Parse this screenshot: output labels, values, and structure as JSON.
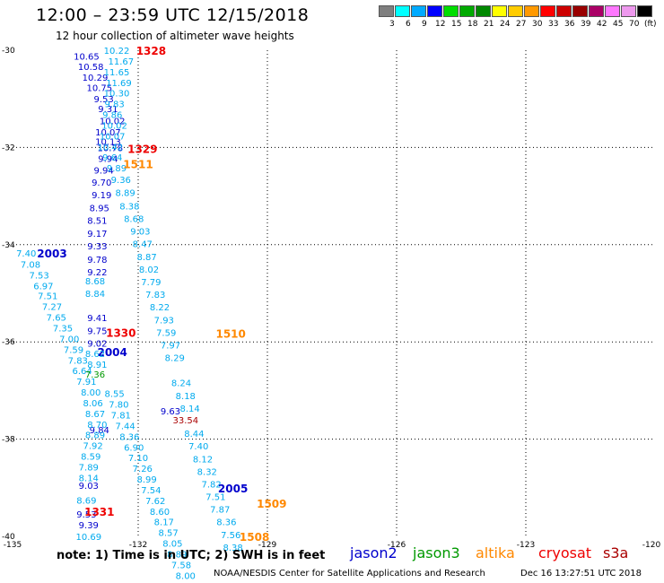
{
  "header": {
    "title": "12:00 – 23:59 UTC 12/15/2018",
    "subtitle": "12 hour collection of altimeter wave heights"
  },
  "colorbar": {
    "unit": "(ft)",
    "colors": [
      "#7f7f7f",
      "#00ffff",
      "#00aaff",
      "#0000ff",
      "#00dd00",
      "#00aa00",
      "#008800",
      "#ffff00",
      "#ffcc00",
      "#ff9900",
      "#ff0000",
      "#cc0000",
      "#990000",
      "#aa0066",
      "#ff77ff",
      "#ee99ee",
      "#000000"
    ],
    "labels": [
      "3",
      "6",
      "9",
      "12",
      "15",
      "18",
      "21",
      "24",
      "27",
      "30",
      "33",
      "36",
      "39",
      "42",
      "45",
      "70"
    ]
  },
  "footer": {
    "note": "note:  1) Time is in UTC;  2) SWH is in feet",
    "credit": "NOAA/NESDIS Center for Satellite Applications and Research",
    "timestamp": "Dec 16 13:27:51 UTC 2018"
  },
  "chart_data": {
    "type": "scatter",
    "xlim": [
      -135,
      -120
    ],
    "ylim": [
      -40,
      -30
    ],
    "x_ticks": [
      "-135",
      "-132",
      "-129",
      "-126",
      "-123",
      "-120"
    ],
    "y_ticks": [
      "-30",
      "-32",
      "-34",
      "-36",
      "-38",
      "-40"
    ],
    "grid": true,
    "legend": [
      {
        "name": "jason2",
        "color": "#0000cc"
      },
      {
        "name": "jason3",
        "color": "#009900"
      },
      {
        "name": "altika",
        "color": "#ff8800"
      },
      {
        "name": "cryosat",
        "color": "#ee0000"
      },
      {
        "name": "s3a",
        "color": "#aa0000"
      }
    ],
    "series": [
      {
        "name": "jason2",
        "color": "#0000cc",
        "time_labels": [
          {
            "lon": -134.0,
            "lat": -34.17,
            "label": "2003"
          },
          {
            "lon": -132.6,
            "lat": -36.2,
            "label": "2004"
          },
          {
            "lon": -129.8,
            "lat": -39.0,
            "label": "2005"
          }
        ],
        "points": [
          {
            "lon": -133.2,
            "lat": -30.12,
            "label": "10.65"
          },
          {
            "lon": -133.1,
            "lat": -30.33,
            "label": "10.58"
          },
          {
            "lon": -133.0,
            "lat": -30.55,
            "label": "10.29"
          },
          {
            "lon": -132.9,
            "lat": -30.77,
            "label": "10.75"
          },
          {
            "lon": -132.8,
            "lat": -31.0,
            "label": "9.53"
          },
          {
            "lon": -132.7,
            "lat": -31.2,
            "label": "9.31"
          },
          {
            "lon": -132.6,
            "lat": -31.45,
            "label": "10.02"
          },
          {
            "lon": -132.7,
            "lat": -31.68,
            "label": "10.07"
          },
          {
            "lon": -132.7,
            "lat": -31.87,
            "label": "10.13"
          },
          {
            "lon": -132.65,
            "lat": -32.0,
            "label": "10.78"
          },
          {
            "lon": -132.7,
            "lat": -32.22,
            "label": "9.94"
          },
          {
            "lon": -132.8,
            "lat": -32.46,
            "label": "9.94"
          },
          {
            "lon": -132.85,
            "lat": -32.71,
            "label": "9.70"
          },
          {
            "lon": -132.85,
            "lat": -32.97,
            "label": "9.19"
          },
          {
            "lon": -132.9,
            "lat": -33.24,
            "label": "8.95"
          },
          {
            "lon": -132.95,
            "lat": -33.5,
            "label": "8.51"
          },
          {
            "lon": -132.95,
            "lat": -33.76,
            "label": "9.17"
          },
          {
            "lon": -132.95,
            "lat": -34.02,
            "label": "9.33"
          },
          {
            "lon": -132.95,
            "lat": -34.3,
            "label": "9.78"
          },
          {
            "lon": -132.95,
            "lat": -34.56,
            "label": "9.22"
          },
          {
            "lon": -132.95,
            "lat": -35.5,
            "label": "9.41"
          },
          {
            "lon": -132.95,
            "lat": -35.77,
            "label": "9.75"
          },
          {
            "lon": -132.95,
            "lat": -36.02,
            "label": "9.02"
          },
          {
            "lon": -132.9,
            "lat": -37.8,
            "label": "9.84"
          },
          {
            "lon": -131.25,
            "lat": -37.42,
            "label": "9.63"
          },
          {
            "lon": -133.15,
            "lat": -38.95,
            "label": "9.03"
          },
          {
            "lon": -133.2,
            "lat": -39.54,
            "label": "9.53"
          },
          {
            "lon": -133.15,
            "lat": -39.76,
            "label": "9.39"
          }
        ]
      },
      {
        "name": "jason3",
        "color": "#00aaee",
        "points": [
          {
            "lon": -132.5,
            "lat": -30.0,
            "label": "10.22"
          },
          {
            "lon": -132.4,
            "lat": -30.22,
            "label": "11.67"
          },
          {
            "lon": -132.5,
            "lat": -30.44,
            "label": "11.65"
          },
          {
            "lon": -132.45,
            "lat": -30.66,
            "label": "11.69"
          },
          {
            "lon": -132.5,
            "lat": -30.88,
            "label": "10.30"
          },
          {
            "lon": -132.55,
            "lat": -31.1,
            "label": "9.83"
          },
          {
            "lon": -132.6,
            "lat": -31.32,
            "label": "9.86"
          },
          {
            "lon": -132.55,
            "lat": -31.54,
            "label": "10.02"
          },
          {
            "lon": -132.6,
            "lat": -31.76,
            "label": "10.07"
          },
          {
            "lon": -132.65,
            "lat": -31.98,
            "label": "10.42"
          },
          {
            "lon": -132.6,
            "lat": -32.2,
            "label": "9.64"
          },
          {
            "lon": -132.5,
            "lat": -32.42,
            "label": "9.89"
          },
          {
            "lon": -132.4,
            "lat": -32.66,
            "label": "9.36"
          },
          {
            "lon": -132.3,
            "lat": -32.92,
            "label": "8.89"
          },
          {
            "lon": -132.2,
            "lat": -33.2,
            "label": "8.38"
          },
          {
            "lon": -132.1,
            "lat": -33.46,
            "label": "8.68"
          },
          {
            "lon": -131.95,
            "lat": -33.72,
            "label": "9.03"
          },
          {
            "lon": -131.9,
            "lat": -33.98,
            "label": "8.47"
          },
          {
            "lon": -131.8,
            "lat": -34.24,
            "label": "8.87"
          },
          {
            "lon": -131.75,
            "lat": -34.5,
            "label": "8.02"
          },
          {
            "lon": -131.7,
            "lat": -34.76,
            "label": "7.79"
          },
          {
            "lon": -131.6,
            "lat": -35.02,
            "label": "7.83"
          },
          {
            "lon": -131.5,
            "lat": -35.28,
            "label": "8.22"
          },
          {
            "lon": -131.4,
            "lat": -35.54,
            "label": "7.93"
          },
          {
            "lon": -131.35,
            "lat": -35.8,
            "label": "7.59"
          },
          {
            "lon": -131.25,
            "lat": -36.06,
            "label": "7.97"
          },
          {
            "lon": -131.15,
            "lat": -36.32,
            "label": "8.29"
          },
          {
            "lon": -131.0,
            "lat": -36.84,
            "label": "8.24"
          },
          {
            "lon": -130.9,
            "lat": -37.1,
            "label": "8.18"
          },
          {
            "lon": -130.8,
            "lat": -37.36,
            "label": "8.14"
          },
          {
            "lon": -130.7,
            "lat": -37.88,
            "label": "8.44"
          },
          {
            "lon": -130.6,
            "lat": -38.14,
            "label": "7.40"
          },
          {
            "lon": -130.5,
            "lat": -38.4,
            "label": "8.12"
          },
          {
            "lon": -130.4,
            "lat": -38.66,
            "label": "8.32"
          },
          {
            "lon": -130.3,
            "lat": -38.92,
            "label": "7.82"
          },
          {
            "lon": -130.2,
            "lat": -39.18,
            "label": "7.51"
          },
          {
            "lon": -130.1,
            "lat": -39.44,
            "label": "7.87"
          },
          {
            "lon": -129.95,
            "lat": -39.7,
            "label": "8.36"
          },
          {
            "lon": -129.85,
            "lat": -39.96,
            "label": "7.56"
          },
          {
            "lon": -129.8,
            "lat": -40.22,
            "label": "8.38"
          },
          {
            "lon": -134.6,
            "lat": -34.17,
            "label": "7.40"
          },
          {
            "lon": -134.5,
            "lat": -34.4,
            "label": "7.08"
          },
          {
            "lon": -134.3,
            "lat": -34.62,
            "label": "7.53"
          },
          {
            "lon": -134.2,
            "lat": -34.84,
            "label": "6.97"
          },
          {
            "lon": -134.1,
            "lat": -35.05,
            "label": "7.51"
          },
          {
            "lon": -134.0,
            "lat": -35.27,
            "label": "7.27"
          },
          {
            "lon": -133.9,
            "lat": -35.49,
            "label": "7.65"
          },
          {
            "lon": -133.75,
            "lat": -35.71,
            "label": "7.35"
          },
          {
            "lon": -133.6,
            "lat": -35.93,
            "label": "7.00"
          },
          {
            "lon": -133.5,
            "lat": -36.15,
            "label": "7.59"
          },
          {
            "lon": -133.4,
            "lat": -36.37,
            "label": "7.83"
          },
          {
            "lon": -133.3,
            "lat": -36.59,
            "label": "6.64"
          },
          {
            "lon": -133.2,
            "lat": -36.81,
            "label": "7.91"
          },
          {
            "lon": -133.1,
            "lat": -37.03,
            "label": "8.00"
          },
          {
            "lon": -133.05,
            "lat": -37.25,
            "label": "8.06"
          },
          {
            "lon": -133.0,
            "lat": -37.47,
            "label": "8.67"
          },
          {
            "lon": -132.95,
            "lat": -37.69,
            "label": "8.70"
          },
          {
            "lon": -133.0,
            "lat": -37.91,
            "label": "8.89"
          },
          {
            "lon": -133.05,
            "lat": -38.13,
            "label": "7.92"
          },
          {
            "lon": -133.1,
            "lat": -38.35,
            "label": "8.59"
          },
          {
            "lon": -133.15,
            "lat": -38.57,
            "label": "7.89"
          },
          {
            "lon": -133.15,
            "lat": -38.79,
            "label": "8.14"
          },
          {
            "lon": -133.2,
            "lat": -39.25,
            "label": "8.69"
          },
          {
            "lon": -133.15,
            "lat": -40.0,
            "label": "10.69"
          },
          {
            "lon": -132.55,
            "lat": -37.06,
            "label": "8.55"
          },
          {
            "lon": -132.45,
            "lat": -37.28,
            "label": "7.80"
          },
          {
            "lon": -132.4,
            "lat": -37.5,
            "label": "7.81"
          },
          {
            "lon": -132.3,
            "lat": -37.72,
            "label": "7.44"
          },
          {
            "lon": -132.2,
            "lat": -37.94,
            "label": "8.36"
          },
          {
            "lon": -132.1,
            "lat": -38.16,
            "label": "6.90"
          },
          {
            "lon": -132.0,
            "lat": -38.38,
            "label": "7.10"
          },
          {
            "lon": -131.9,
            "lat": -38.6,
            "label": "7.26"
          },
          {
            "lon": -131.8,
            "lat": -38.82,
            "label": "8.99"
          },
          {
            "lon": -131.7,
            "lat": -39.04,
            "label": "7.54"
          },
          {
            "lon": -131.6,
            "lat": -39.26,
            "label": "7.62"
          },
          {
            "lon": -131.5,
            "lat": -39.48,
            "label": "8.60"
          },
          {
            "lon": -131.4,
            "lat": -39.7,
            "label": "8.17"
          },
          {
            "lon": -131.3,
            "lat": -39.92,
            "label": "8.57"
          },
          {
            "lon": -131.2,
            "lat": -40.14,
            "label": "8.05"
          },
          {
            "lon": -131.1,
            "lat": -40.36,
            "label": "8.89"
          },
          {
            "lon": -131.0,
            "lat": -40.58,
            "label": "7.58"
          },
          {
            "lon": -130.9,
            "lat": -40.8,
            "label": "8.00"
          },
          {
            "lon": -133.0,
            "lat": -34.74,
            "label": "8.68"
          },
          {
            "lon": -133.0,
            "lat": -35.0,
            "label": "8.84"
          },
          {
            "lon": -133.0,
            "lat": -36.24,
            "label": "8.62"
          },
          {
            "lon": -132.95,
            "lat": -36.46,
            "label": "8.91"
          }
        ]
      },
      {
        "name": "jason3-time",
        "color": "#009900",
        "points": [
          {
            "lon": -133.0,
            "lat": -36.66,
            "label": "7.36"
          }
        ]
      },
      {
        "name": "altika",
        "color": "#ff8800",
        "time_labels": [
          {
            "lon": -132.0,
            "lat": -32.33,
            "label": "1511"
          },
          {
            "lon": -129.85,
            "lat": -35.82,
            "label": "1510"
          },
          {
            "lon": -128.9,
            "lat": -39.32,
            "label": "1509"
          },
          {
            "lon": -129.3,
            "lat": -40.0,
            "label": "1508"
          }
        ],
        "points": []
      },
      {
        "name": "cryosat",
        "color": "#ee0000",
        "time_labels": [
          {
            "lon": -131.7,
            "lat": -30.0,
            "label": "1328"
          },
          {
            "lon": -131.9,
            "lat": -32.02,
            "label": "1329"
          },
          {
            "lon": -132.4,
            "lat": -35.8,
            "label": "1330"
          },
          {
            "lon": -132.9,
            "lat": -39.48,
            "label": "1331"
          }
        ],
        "points": []
      },
      {
        "name": "s3a",
        "color": "#aa0000",
        "points": [
          {
            "lon": -130.9,
            "lat": -37.6,
            "label": "33.54"
          }
        ]
      }
    ]
  }
}
